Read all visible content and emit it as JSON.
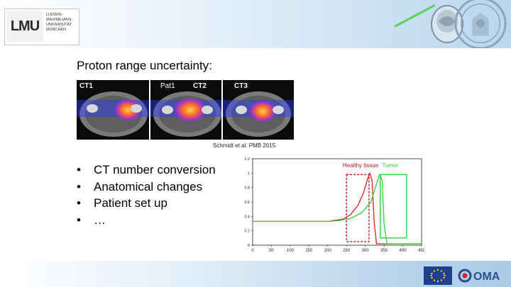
{
  "header": {
    "logo_text": "LMU",
    "logo_subtext": "LUDWIG-\nMAXIMILIANS-\nUNIVERSITÄT\nMÜNCHEN"
  },
  "slide": {
    "title": "Proton range uncertainty:",
    "ct_labels": [
      "CT1",
      "Pat1",
      "CT2",
      "CT3"
    ],
    "citation": "Schmidt et al. PMB 2015",
    "bullets": [
      "CT number conversion",
      "Anatomical changes",
      "Patient set up",
      "…"
    ]
  },
  "chart_data": {
    "type": "line",
    "annotations": [
      "Healthy tissue",
      "Tumor"
    ],
    "x_ticks": [
      0,
      50,
      100,
      150,
      200,
      250,
      300,
      350,
      400,
      450
    ],
    "y_ticks": [
      0,
      0.2,
      0.4,
      0.6,
      0.8,
      1,
      1.2
    ],
    "xlim": [
      0,
      450
    ],
    "ylim": [
      0,
      1.2
    ],
    "series": [
      {
        "color": "#e02020",
        "points": [
          [
            0,
            0.33
          ],
          [
            200,
            0.33
          ],
          [
            240,
            0.36
          ],
          [
            260,
            0.42
          ],
          [
            280,
            0.55
          ],
          [
            295,
            0.72
          ],
          [
            305,
            0.9
          ],
          [
            312,
            1.0
          ],
          [
            318,
            0.9
          ],
          [
            324,
            0.3
          ],
          [
            330,
            0.02
          ],
          [
            450,
            0.02
          ]
        ]
      },
      {
        "color": "#2fd43a",
        "points": [
          [
            0,
            0.33
          ],
          [
            200,
            0.33
          ],
          [
            230,
            0.34
          ],
          [
            260,
            0.37
          ],
          [
            290,
            0.45
          ],
          [
            315,
            0.6
          ],
          [
            330,
            0.85
          ],
          [
            338,
            0.98
          ],
          [
            345,
            0.9
          ],
          [
            350,
            0.3
          ],
          [
            358,
            0.02
          ],
          [
            450,
            0.02
          ]
        ]
      }
    ],
    "boxes": [
      {
        "name": "Healthy tissue",
        "x": [
          250,
          310
        ],
        "y": [
          0.05,
          0.98
        ],
        "color": "#c0181e",
        "dashed": true
      },
      {
        "name": "Tumor",
        "x": [
          340,
          410
        ],
        "y": [
          0.1,
          0.98
        ],
        "color": "#2fd43a",
        "dashed": false
      }
    ]
  },
  "footer": {
    "partner_logo": "OMA",
    "colors": {
      "eu_blue": "#1f3f8f",
      "eu_star": "#ffd400",
      "oma_red": "#d3202b"
    }
  }
}
